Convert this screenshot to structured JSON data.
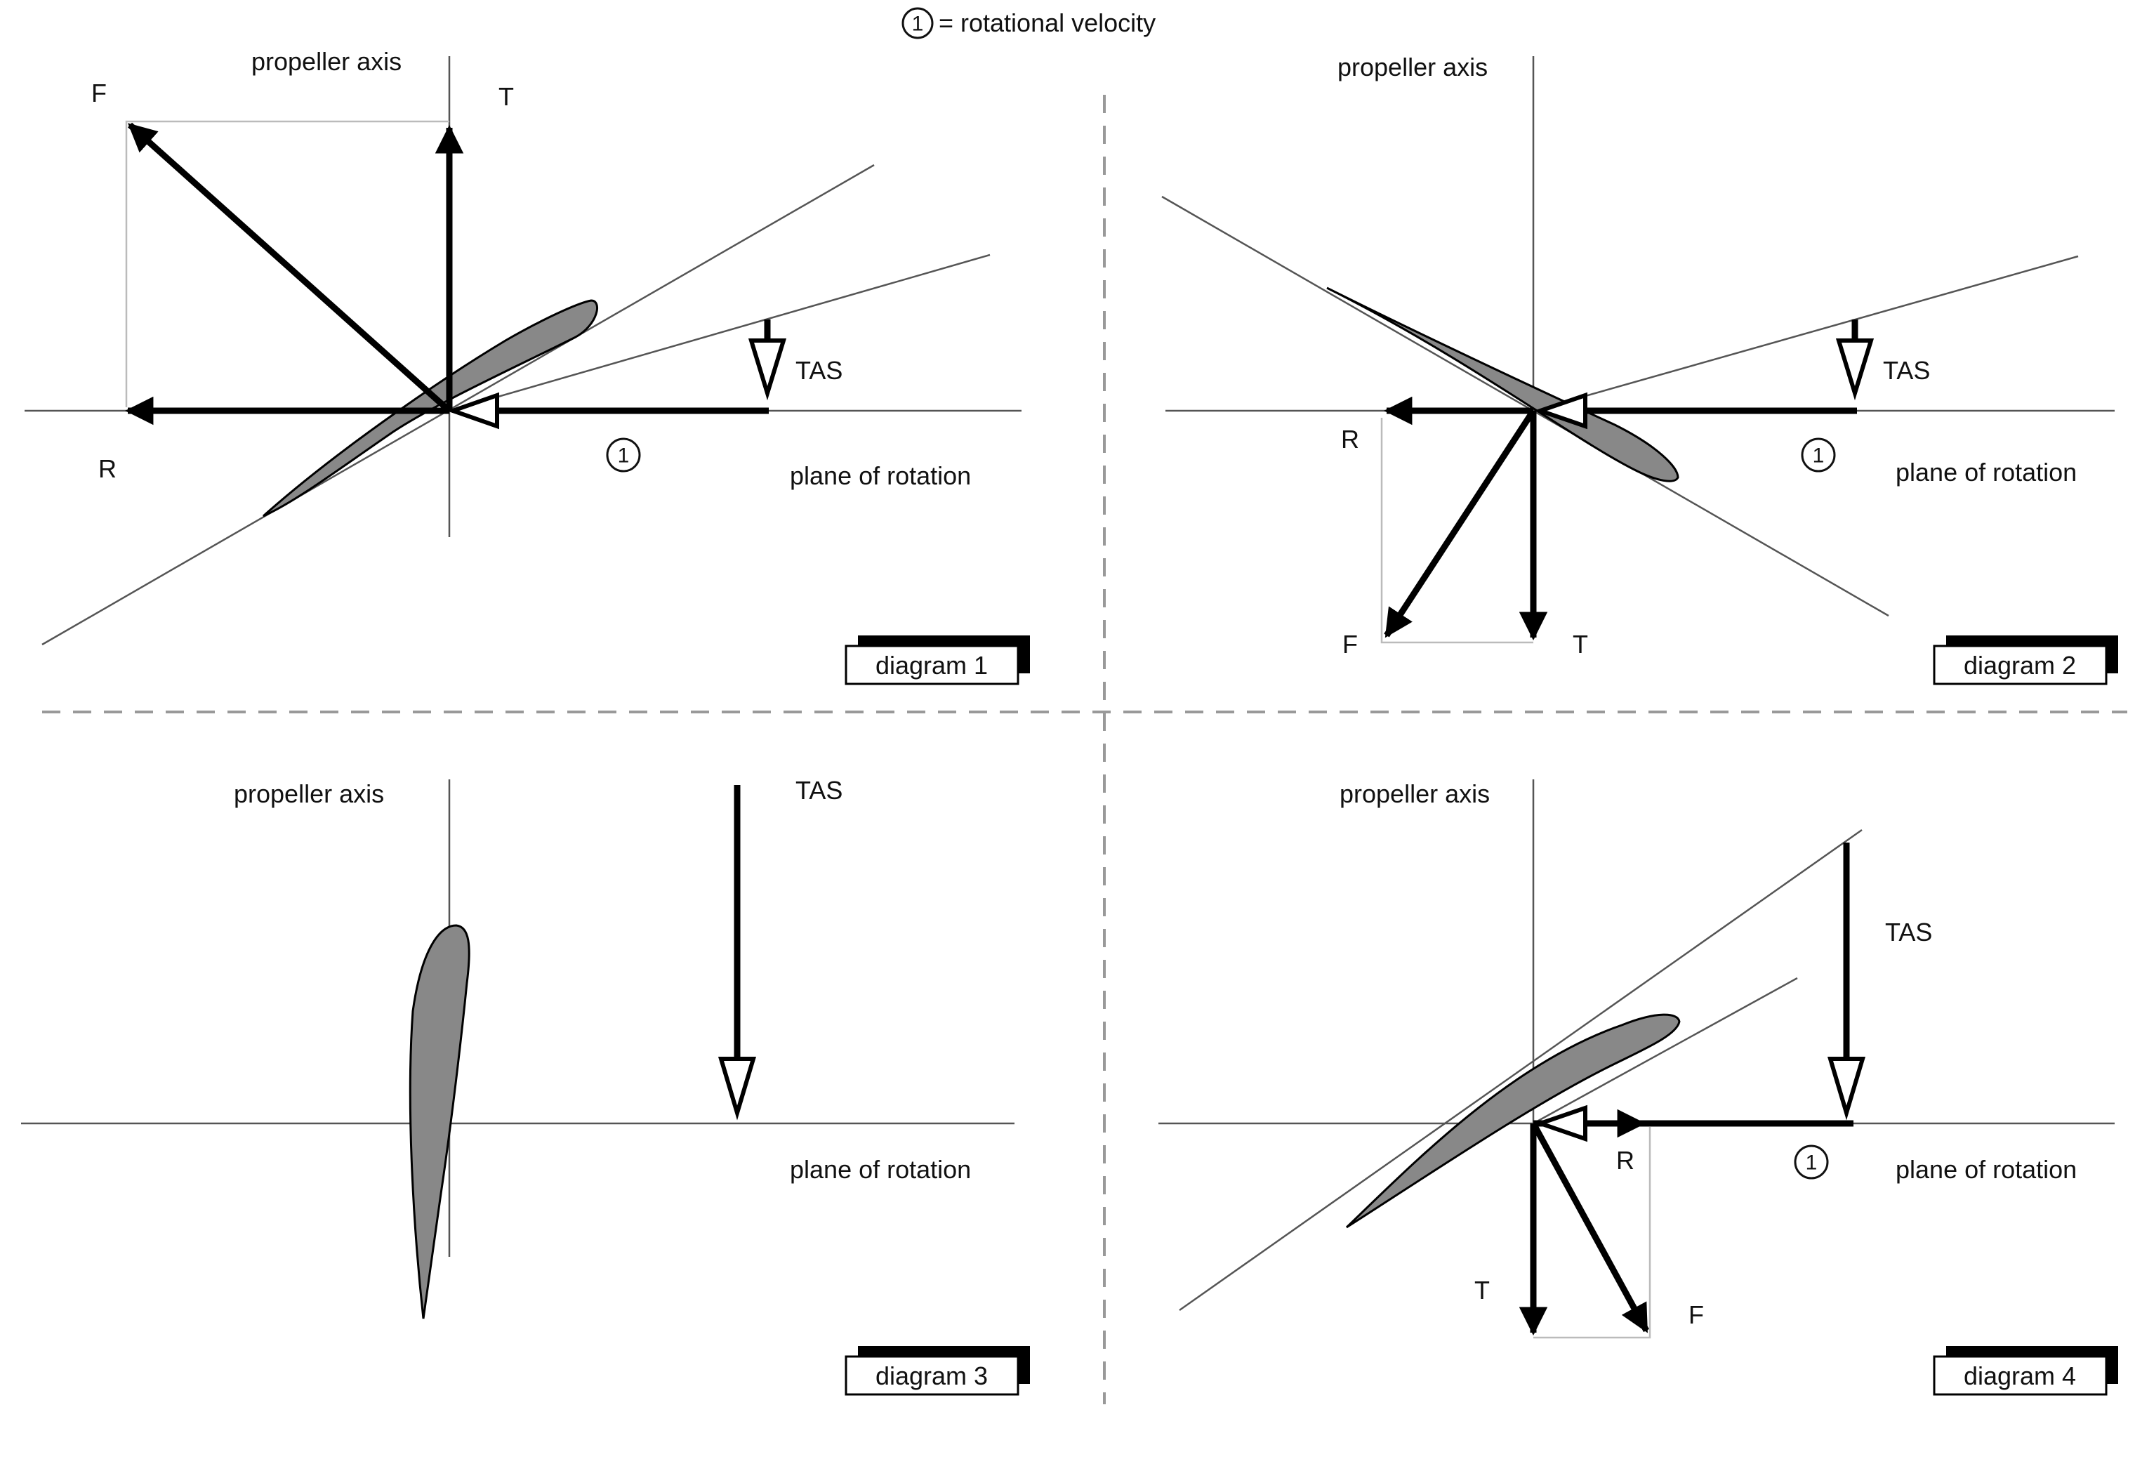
{
  "legend": {
    "symbol": "1",
    "text": "= rotational velocity"
  },
  "labels": {
    "propeller_axis": "propeller axis",
    "plane_of_rotation": "plane of rotation",
    "tas": "TAS",
    "force_total": "F",
    "thrust": "T",
    "torque_resistance": "R",
    "rot_symbol": "1"
  },
  "diagrams": [
    {
      "tag": "diagram 1"
    },
    {
      "tag": "diagram 2"
    },
    {
      "tag": "diagram 3"
    },
    {
      "tag": "diagram 4"
    }
  ]
}
